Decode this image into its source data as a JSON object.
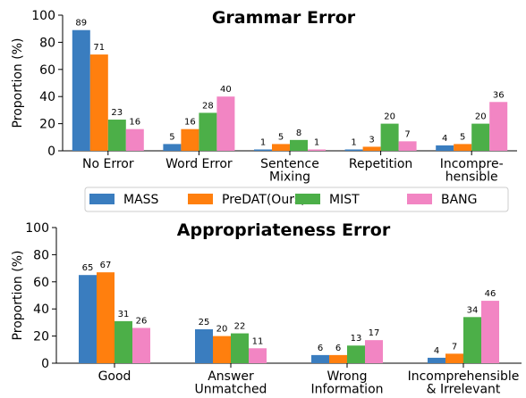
{
  "chart_data": [
    {
      "type": "bar",
      "title": "Grammar Error",
      "ylabel": "Proportion (%)",
      "categories": [
        "No Error",
        "Word Error",
        "Sentence\nMixing",
        "Repetition",
        "Incompre-\nhensible"
      ],
      "series": [
        {
          "name": "MASS",
          "color": "#3a7dbf",
          "values": [
            89,
            5,
            1,
            1,
            4
          ]
        },
        {
          "name": "PreDAT(Ours)",
          "color": "#ff7f0e",
          "values": [
            71,
            16,
            5,
            3,
            5
          ]
        },
        {
          "name": "MIST",
          "color": "#4caf48",
          "values": [
            23,
            28,
            8,
            20,
            20
          ]
        },
        {
          "name": "BANG",
          "color": "#f285c3",
          "values": [
            16,
            40,
            1,
            7,
            36
          ]
        }
      ],
      "ylim": [
        0,
        100
      ],
      "yticks": [
        0,
        20,
        40,
        60,
        80,
        100
      ]
    },
    {
      "type": "bar",
      "title": "Appropriateness Error",
      "ylabel": "Proportion (%)",
      "categories": [
        "Good",
        "Answer\nUnmatched",
        "Wrong\nInformation",
        "Incomprehensible\n& Irrelevant"
      ],
      "series": [
        {
          "values": [
            65,
            25,
            6,
            4
          ]
        },
        {
          "values": [
            67,
            20,
            6,
            7
          ]
        },
        {
          "values": [
            31,
            22,
            13,
            34
          ]
        },
        {
          "values": [
            26,
            11,
            17,
            46
          ]
        }
      ],
      "ylim": [
        0,
        100
      ],
      "yticks": [
        0,
        20,
        40,
        60,
        80,
        100
      ]
    }
  ]
}
